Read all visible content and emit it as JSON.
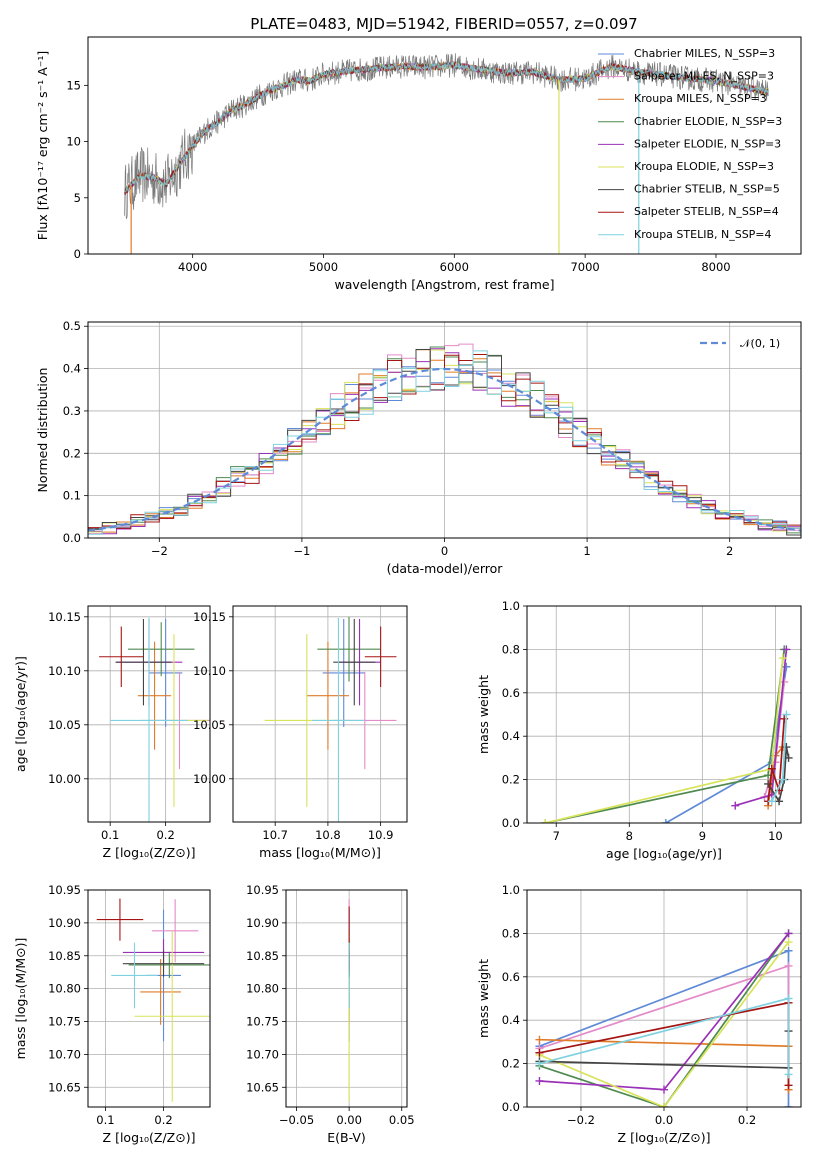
{
  "figure": {
    "title": "PLATE=0483, MJD=51942, FIBERID=0557, z=0.097"
  },
  "legend_entries": [
    {
      "name": "Chabrier MILES, N_SSP=3",
      "color": "#5f8ad8"
    },
    {
      "name": "Salpeter MILES, N_SSP=3",
      "color": "#e58ac9"
    },
    {
      "name": "Kroupa MILES, N_SSP=3",
      "color": "#e07b28"
    },
    {
      "name": "Chabrier ELODIE, N_SSP=3",
      "color": "#4f8a4f"
    },
    {
      "name": "Salpeter ELODIE, N_SSP=3",
      "color": "#9b30b8"
    },
    {
      "name": "Kroupa ELODIE, N_SSP=3",
      "color": "#d7e35a"
    },
    {
      "name": "Chabrier STELIB, N_SSP=5",
      "color": "#444444"
    },
    {
      "name": "Salpeter STELIB, N_SSP=4",
      "color": "#a51414"
    },
    {
      "name": "Kroupa STELIB, N_SSP=4",
      "color": "#7fd1e0"
    }
  ],
  "chart_data": [
    {
      "id": "spectrum",
      "type": "line",
      "xlabel": "wavelength [Angstrom, rest frame]",
      "ylabel": "Flux [fλ10⁻¹⁷ erg cm⁻² s⁻¹ A⁻¹]",
      "xlim": [
        3200,
        8650
      ],
      "ylim": [
        0,
        19.3
      ],
      "xticks": [
        4000,
        5000,
        6000,
        7000,
        8000
      ],
      "yticks": [
        0,
        5,
        10,
        15
      ],
      "continuum": {
        "x": [
          3480,
          3600,
          3700,
          3800,
          3900,
          4000,
          4100,
          4200,
          4300,
          4400,
          4500,
          4600,
          4700,
          4800,
          4900,
          5000,
          5200,
          5400,
          5600,
          5800,
          6000,
          6200,
          6400,
          6600,
          6800,
          7000,
          7200,
          7400,
          7600,
          7800,
          8000,
          8200,
          8400
        ],
        "y": [
          5.5,
          7.0,
          6.8,
          6.2,
          8.0,
          9.6,
          11.0,
          11.8,
          12.8,
          13.3,
          14.0,
          14.6,
          15.0,
          15.5,
          15.4,
          16.0,
          16.3,
          16.5,
          16.7,
          16.6,
          16.8,
          16.4,
          16.1,
          16.2,
          15.5,
          15.6,
          16.7,
          16.2,
          15.9,
          15.6,
          15.4,
          14.9,
          14.4
        ]
      },
      "drops_to_zero_at": [
        3530,
        6800,
        7410
      ]
    },
    {
      "id": "residual-histogram",
      "type": "line",
      "xlabel": "(data-model)/error",
      "ylabel": "Normed distribution",
      "xlim": [
        -2.5,
        2.5
      ],
      "ylim": [
        0,
        0.51
      ],
      "xticks": [
        -2,
        -1,
        0,
        1,
        2
      ],
      "yticks": [
        0,
        0.1,
        0.2,
        0.3,
        0.4,
        0.5
      ],
      "reference_curve": "𝒩(0, 1)",
      "bin_width": 0.1
    },
    {
      "id": "age-vs-Z",
      "type": "scatter",
      "xlabel": "Z [log₁₀(Z/Z⊙)]",
      "ylabel": "age  [log₁₀(age/yr)]",
      "xlim": [
        0.06,
        0.28
      ],
      "ylim": [
        9.96,
        10.16
      ],
      "xticks": [
        0.1,
        0.2
      ],
      "yticks": [
        10.0,
        10.05,
        10.1,
        10.15
      ],
      "points": [
        {
          "x": 0.2,
          "y": 10.098,
          "xerr": 0.03,
          "yerr": 0.05
        },
        {
          "x": 0.225,
          "y": 10.054,
          "xerr": 0.055,
          "yerr": 0.045
        },
        {
          "x": 0.18,
          "y": 10.077,
          "xerr": 0.03,
          "yerr": 0.05
        },
        {
          "x": 0.192,
          "y": 10.12,
          "xerr": 0.06,
          "yerr": 0.025
        },
        {
          "x": 0.17,
          "y": 10.108,
          "xerr": 0.06,
          "yerr": 0.04
        },
        {
          "x": 0.215,
          "y": 10.054,
          "xerr": 0.06,
          "yerr": 0.08
        },
        {
          "x": 0.16,
          "y": 10.108,
          "xerr": 0.05,
          "yerr": 0.04
        },
        {
          "x": 0.12,
          "y": 10.113,
          "xerr": 0.04,
          "yerr": 0.028
        },
        {
          "x": 0.17,
          "y": 10.054,
          "xerr": 0.07,
          "yerr": 0.095
        }
      ]
    },
    {
      "id": "age-vs-mass",
      "type": "scatter",
      "xlabel": "mass [log₁₀(M/M⊙)]",
      "ylabel": "",
      "xlim": [
        10.62,
        10.95
      ],
      "ylim": [
        9.96,
        10.16
      ],
      "xticks": [
        10.7,
        10.8,
        10.9
      ],
      "yticks": [
        10.0,
        10.05,
        10.1,
        10.15
      ],
      "points": [
        {
          "x": 10.83,
          "y": 10.098,
          "xerr": 0.04,
          "yerr": 0.05
        },
        {
          "x": 10.87,
          "y": 10.054,
          "xerr": 0.06,
          "yerr": 0.045
        },
        {
          "x": 10.8,
          "y": 10.077,
          "xerr": 0.04,
          "yerr": 0.05
        },
        {
          "x": 10.84,
          "y": 10.12,
          "xerr": 0.06,
          "yerr": 0.03
        },
        {
          "x": 10.86,
          "y": 10.108,
          "xerr": 0.04,
          "yerr": 0.04
        },
        {
          "x": 10.76,
          "y": 10.054,
          "xerr": 0.08,
          "yerr": 0.08
        },
        {
          "x": 10.85,
          "y": 10.108,
          "xerr": 0.04,
          "yerr": 0.04
        },
        {
          "x": 10.9,
          "y": 10.113,
          "xerr": 0.03,
          "yerr": 0.028
        },
        {
          "x": 10.82,
          "y": 10.054,
          "xerr": 0.05,
          "yerr": 0.095
        }
      ]
    },
    {
      "id": "massweight-vs-age",
      "type": "line",
      "xlabel": "age  [log₁₀(age/yr)]",
      "ylabel": "mass weight",
      "xlim": [
        6.6,
        10.35
      ],
      "ylim": [
        0,
        1
      ],
      "xticks": [
        7,
        8,
        9,
        10
      ],
      "yticks": [
        0,
        0.2,
        0.4,
        0.6,
        0.8,
        1.0
      ],
      "series": [
        {
          "x": [
            8.5,
            9.95,
            10.15
          ],
          "y": [
            0.0,
            0.28,
            0.72
          ]
        },
        {
          "x": [
            9.85,
            10.0,
            10.12
          ],
          "y": [
            0.12,
            0.28,
            0.65
          ]
        },
        {
          "x": [
            9.9,
            10.0,
            10.1
          ],
          "y": [
            0.08,
            0.31,
            0.35
          ]
        },
        {
          "x": [
            6.85,
            9.9,
            10.12
          ],
          "y": [
            0.0,
            0.22,
            0.8
          ]
        },
        {
          "x": [
            9.45,
            9.95,
            10.15
          ],
          "y": [
            0.08,
            0.13,
            0.8
          ]
        },
        {
          "x": [
            6.85,
            9.95,
            10.1
          ],
          "y": [
            0.0,
            0.25,
            0.76
          ]
        },
        {
          "x": [
            9.9,
            10.05,
            10.12,
            10.15,
            10.18
          ],
          "y": [
            0.18,
            0.1,
            0.2,
            0.35,
            0.3
          ]
        },
        {
          "x": [
            9.9,
            9.95,
            10.05,
            10.12
          ],
          "y": [
            0.1,
            0.25,
            0.15,
            0.48
          ]
        },
        {
          "x": [
            9.95,
            10.1,
            10.15
          ],
          "y": [
            0.1,
            0.2,
            0.5
          ]
        }
      ]
    },
    {
      "id": "mass-vs-Z",
      "type": "scatter",
      "xlabel": "Z [log₁₀(Z/Z⊙)]",
      "ylabel": "mass [log₁₀(M/M⊙)]",
      "xlim": [
        0.07,
        0.28
      ],
      "ylim": [
        10.62,
        10.95
      ],
      "xticks": [
        0.1,
        0.2
      ],
      "yticks": [
        10.65,
        10.7,
        10.75,
        10.8,
        10.85,
        10.9,
        10.95
      ],
      "points": [
        {
          "x": 0.2,
          "y": 10.82,
          "xerr": 0.03,
          "yerr": 0.1
        },
        {
          "x": 0.22,
          "y": 10.888,
          "xerr": 0.04,
          "yerr": 0.048
        },
        {
          "x": 0.195,
          "y": 10.795,
          "xerr": 0.035,
          "yerr": 0.05
        },
        {
          "x": 0.21,
          "y": 10.836,
          "xerr": 0.07,
          "yerr": 0.02
        },
        {
          "x": 0.2,
          "y": 10.855,
          "xerr": 0.07,
          "yerr": 0.02
        },
        {
          "x": 0.215,
          "y": 10.758,
          "xerr": 0.065,
          "yerr": 0.13
        },
        {
          "x": 0.2,
          "y": 10.838,
          "xerr": 0.07,
          "yerr": 0.02
        },
        {
          "x": 0.125,
          "y": 10.905,
          "xerr": 0.04,
          "yerr": 0.032
        },
        {
          "x": 0.15,
          "y": 10.82,
          "xerr": 0.04,
          "yerr": 0.05
        }
      ]
    },
    {
      "id": "mass-vs-EBV",
      "type": "scatter",
      "xlabel": "E(B-V)",
      "ylabel": "",
      "xlim": [
        -0.06,
        0.055
      ],
      "ylim": [
        10.62,
        10.95
      ],
      "xticks": [
        -0.05,
        0.0,
        0.05
      ],
      "yticks": [
        10.65,
        10.7,
        10.75,
        10.8,
        10.85,
        10.9,
        10.95
      ],
      "points": [
        {
          "x": 0.0,
          "y": 10.82,
          "xerr": 0,
          "yerr": 0.1
        },
        {
          "x": 0.0,
          "y": 10.888,
          "xerr": 0,
          "yerr": 0.048
        },
        {
          "x": 0.0,
          "y": 10.795,
          "xerr": 0,
          "yerr": 0.05
        },
        {
          "x": 0.0,
          "y": 10.836,
          "xerr": 0,
          "yerr": 0.02
        },
        {
          "x": 0.0,
          "y": 10.855,
          "xerr": 0,
          "yerr": 0.02
        },
        {
          "x": 0.0,
          "y": 10.758,
          "xerr": 0,
          "yerr": 0.13
        },
        {
          "x": 0.0,
          "y": 10.838,
          "xerr": 0,
          "yerr": 0.02
        },
        {
          "x": 0.0,
          "y": 10.875,
          "xerr": 0,
          "yerr": 0.05
        },
        {
          "x": 0.0,
          "y": 10.82,
          "xerr": 0,
          "yerr": 0.05
        }
      ]
    },
    {
      "id": "massweight-vs-Z",
      "type": "line",
      "xlabel": "Z [log₁₀(Z/Z⊙)]",
      "ylabel": "mass weight",
      "xlim": [
        -0.33,
        0.33
      ],
      "ylim": [
        0,
        1
      ],
      "xticks": [
        -0.2,
        0.0,
        0.2
      ],
      "yticks": [
        0,
        0.2,
        0.4,
        0.6,
        0.8,
        1.0
      ],
      "series": [
        {
          "x": [
            -0.3,
            0.3,
            0.3
          ],
          "y": [
            0.28,
            0.72,
            0.0
          ]
        },
        {
          "x": [
            -0.3,
            0.3,
            0.3
          ],
          "y": [
            0.27,
            0.65,
            0.08
          ]
        },
        {
          "x": [
            -0.3,
            0.3,
            0.3
          ],
          "y": [
            0.31,
            0.28,
            0.08
          ]
        },
        {
          "x": [
            -0.3,
            0.0,
            0.3
          ],
          "y": [
            0.19,
            0.0,
            0.8
          ]
        },
        {
          "x": [
            -0.3,
            0.0,
            0.3
          ],
          "y": [
            0.12,
            0.08,
            0.8
          ]
        },
        {
          "x": [
            -0.3,
            0.0,
            0.3
          ],
          "y": [
            0.24,
            0.0,
            0.76
          ]
        },
        {
          "x": [
            -0.3,
            0.3,
            0.3
          ],
          "y": [
            0.21,
            0.18,
            0.35
          ]
        },
        {
          "x": [
            -0.3,
            0.3,
            0.3
          ],
          "y": [
            0.25,
            0.48,
            0.1
          ]
        },
        {
          "x": [
            -0.3,
            0.3,
            0.3
          ],
          "y": [
            0.2,
            0.5,
            0.15
          ]
        }
      ]
    }
  ]
}
